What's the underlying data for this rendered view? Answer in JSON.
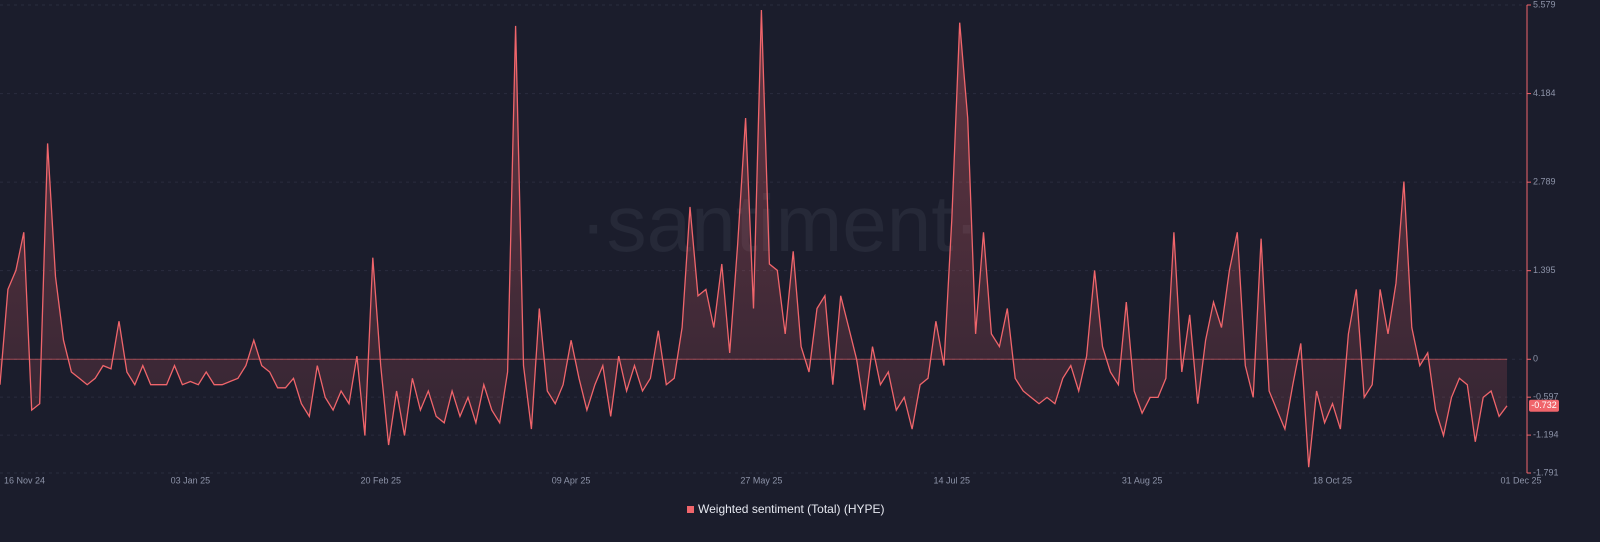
{
  "chart_data": {
    "type": "line",
    "watermark": "·santiment·",
    "categories": [
      "16 Nov 24",
      null,
      null,
      null,
      null,
      null,
      null,
      null,
      null,
      null,
      null,
      null,
      null,
      null,
      null,
      null,
      null,
      null,
      null,
      null,
      null,
      null,
      null,
      null,
      "03 Jan 25",
      null,
      null,
      null,
      null,
      null,
      null,
      null,
      null,
      null,
      null,
      null,
      null,
      null,
      null,
      null,
      null,
      null,
      null,
      null,
      null,
      null,
      null,
      null,
      "20 Feb 25",
      null,
      null,
      null,
      null,
      null,
      null,
      null,
      null,
      null,
      null,
      null,
      null,
      null,
      null,
      null,
      null,
      null,
      null,
      null,
      null,
      null,
      null,
      null,
      "09 Apr 25",
      null,
      null,
      null,
      null,
      null,
      null,
      null,
      null,
      null,
      null,
      null,
      null,
      null,
      null,
      null,
      null,
      null,
      null,
      null,
      null,
      null,
      null,
      null,
      "27 May 25",
      null,
      null,
      null,
      null,
      null,
      null,
      null,
      null,
      null,
      null,
      null,
      null,
      null,
      null,
      null,
      null,
      null,
      null,
      null,
      null,
      null,
      null,
      null,
      "14 Jul 25",
      null,
      null,
      null,
      null,
      null,
      null,
      null,
      null,
      null,
      null,
      null,
      null,
      null,
      null,
      null,
      null,
      null,
      null,
      null,
      null,
      null,
      null,
      null,
      "31 Aug 25",
      null,
      null,
      null,
      null,
      null,
      null,
      null,
      null,
      null,
      null,
      null,
      null,
      null,
      null,
      null,
      null,
      null,
      null,
      null,
      null,
      null,
      null,
      null,
      "18 Oct 25",
      null,
      null,
      null,
      null,
      null,
      null,
      null,
      null,
      null,
      null,
      null,
      null,
      null,
      null,
      null,
      null,
      null,
      null,
      null,
      null,
      null,
      "01 Dec 25"
    ],
    "series": [
      {
        "name": "Weighted sentiment (Total) (HYPE)",
        "color": "#f0656b",
        "values": [
          -0.4,
          1.1,
          1.4,
          2.0,
          -0.8,
          -0.7,
          3.4,
          1.3,
          0.3,
          -0.2,
          -0.3,
          -0.4,
          -0.3,
          -0.1,
          -0.15,
          0.6,
          -0.2,
          -0.4,
          -0.1,
          -0.4,
          -0.4,
          -0.4,
          -0.1,
          -0.4,
          -0.35,
          -0.4,
          -0.2,
          -0.4,
          -0.4,
          -0.35,
          -0.3,
          -0.1,
          0.3,
          -0.1,
          -0.2,
          -0.45,
          -0.45,
          -0.3,
          -0.7,
          -0.9,
          -0.1,
          -0.6,
          -0.8,
          -0.5,
          -0.7,
          0.05,
          -1.2,
          1.6,
          -0.1,
          -1.35,
          -0.5,
          -1.2,
          -0.3,
          -0.8,
          -0.5,
          -0.9,
          -1.0,
          -0.5,
          -0.9,
          -0.6,
          -1.0,
          -0.4,
          -0.8,
          -1.0,
          -0.2,
          5.25,
          -0.1,
          -1.1,
          0.8,
          -0.5,
          -0.7,
          -0.4,
          0.3,
          -0.3,
          -0.8,
          -0.4,
          -0.1,
          -0.9,
          0.05,
          -0.5,
          -0.1,
          -0.5,
          -0.3,
          0.45,
          -0.4,
          -0.3,
          0.5,
          2.4,
          1.0,
          1.1,
          0.5,
          1.5,
          0.1,
          1.8,
          3.8,
          0.8,
          5.5,
          1.5,
          1.4,
          0.4,
          1.7,
          0.2,
          -0.2,
          0.8,
          1.0,
          -0.4,
          1.0,
          0.5,
          0.0,
          -0.8,
          0.2,
          -0.4,
          -0.2,
          -0.8,
          -0.6,
          -1.1,
          -0.4,
          -0.3,
          0.6,
          -0.1,
          2.2,
          5.3,
          3.8,
          0.4,
          2.0,
          0.4,
          0.2,
          0.8,
          -0.3,
          -0.5,
          -0.6,
          -0.7,
          -0.6,
          -0.7,
          -0.3,
          -0.1,
          -0.5,
          0.05,
          1.4,
          0.2,
          -0.2,
          -0.4,
          0.9,
          -0.5,
          -0.85,
          -0.6,
          -0.6,
          -0.3,
          2.0,
          -0.2,
          0.7,
          -0.7,
          0.3,
          0.9,
          0.5,
          1.4,
          2.0,
          -0.1,
          -0.6,
          1.9,
          -0.5,
          -0.8,
          -1.1,
          -0.4,
          0.25,
          -1.7,
          -0.5,
          -1.0,
          -0.7,
          -1.1,
          0.4,
          1.1,
          -0.6,
          -0.4,
          1.1,
          0.4,
          1.2,
          2.8,
          0.5,
          -0.1,
          0.1,
          -0.8,
          -1.2,
          -0.6,
          -0.3,
          -0.4,
          -1.3,
          -0.6,
          -0.5,
          -0.9,
          -0.732
        ]
      }
    ],
    "ylim": [
      -1.791,
      5.579
    ],
    "yticks": [
      -1.791,
      -1.194,
      -0.597,
      0,
      1.395,
      2.789,
      4.184,
      5.579
    ],
    "grid": true,
    "legend": "bottom"
  }
}
